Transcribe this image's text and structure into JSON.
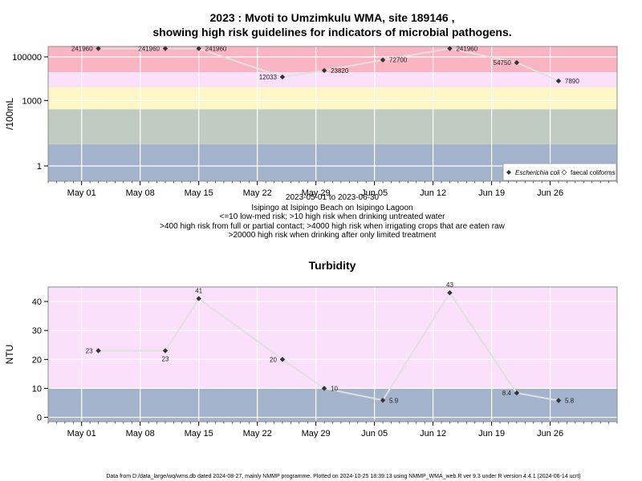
{
  "title": {
    "line1": "2023 : Mvoti to Umzimkulu WMA, site 189146 ,",
    "line2": "showing high risk guidelines for indicators of microbial pathogens."
  },
  "notes": [
    "2023-05-01 to 2023-06-30",
    "Isipingo at Isipingo Beach on Isipingo Lagoon",
    "<=10 low-med risk; >10 high risk when drinking untreated water",
    ">400 high risk from full or partial contact; >4000 high risk when irrigating crops that are eaten raw",
    ">20000 high risk when drinking after only limited treatment"
  ],
  "footer": "Data from D:/data_large/wq/wms.db dated 2024-08-27, mainly NMMP programme. Plotted on 2024-10-25 18:39:13 using NMMP_WMA_web.R ver 9.3 under R version 4.4.1 (2024-06-14 ucrt)",
  "colors": {
    "band_blue": "#a3b3cc",
    "band_grey": "#c2cbc2",
    "band_yellow": "#fdf7c6",
    "band_pink": "#fbe0fb",
    "band_red": "#fbb4c2",
    "line": "#e0e0e0",
    "point": "#333333"
  },
  "chart_data": [
    {
      "type": "line",
      "title": "",
      "ylabel": "/100mL",
      "xlabel": "",
      "y_scale": "log10",
      "ylim": [
        0.2,
        300000
      ],
      "xlim": [
        "2023-04-27",
        "2023-07-04"
      ],
      "x_ticks": [
        "May 01",
        "May 08",
        "May 15",
        "May 22",
        "May 29",
        "Jun 05",
        "Jun 12",
        "Jun 19",
        "Jun 26"
      ],
      "x_tick_dates": [
        "2023-05-01",
        "2023-05-08",
        "2023-05-15",
        "2023-05-22",
        "2023-05-29",
        "2023-06-05",
        "2023-06-12",
        "2023-06-19",
        "2023-06-26"
      ],
      "y_ticks": [
        "1",
        "1000",
        "100000"
      ],
      "y_tick_values": [
        1,
        1000,
        100000
      ],
      "risk_bands": [
        {
          "from": 0.2,
          "to": 10,
          "color": "#a3b3cc"
        },
        {
          "from": 10,
          "to": 400,
          "color": "#c2cbc2"
        },
        {
          "from": 400,
          "to": 4000,
          "color": "#fdf7c6"
        },
        {
          "from": 4000,
          "to": 20000,
          "color": "#fbe0fb"
        },
        {
          "from": 20000,
          "to": 300000,
          "color": "#fbb4c2"
        }
      ],
      "legend": {
        "placement": "bottom-right",
        "entries": [
          "Escherichia coli",
          "faecal coliforms"
        ]
      },
      "series": [
        {
          "name": "Escherichia coli",
          "x": [
            "2023-05-03",
            "2023-05-11",
            "2023-05-15",
            "2023-05-25",
            "2023-05-30",
            "2023-06-06",
            "2023-06-14",
            "2023-06-22",
            "2023-06-27"
          ],
          "values": [
            241960,
            241960,
            241960,
            12033,
            23820,
            72700,
            241960,
            54750,
            7890
          ],
          "labels": [
            "241960",
            "241960",
            "241960",
            "12033",
            "23820",
            "72700",
            "241960",
            "54750",
            "7890"
          ]
        }
      ]
    },
    {
      "type": "line",
      "title": "Turbidity",
      "ylabel": "NTU",
      "xlabel": "",
      "ylim": [
        -1.5,
        45
      ],
      "xlim": [
        "2023-04-27",
        "2023-07-04"
      ],
      "x_ticks": [
        "May 01",
        "May 08",
        "May 15",
        "May 22",
        "May 29",
        "Jun 05",
        "Jun 12",
        "Jun 19",
        "Jun 26"
      ],
      "x_tick_dates": [
        "2023-05-01",
        "2023-05-08",
        "2023-05-15",
        "2023-05-22",
        "2023-05-29",
        "2023-06-05",
        "2023-06-12",
        "2023-06-19",
        "2023-06-26"
      ],
      "y_ticks": [
        "0",
        "10",
        "20",
        "30",
        "40"
      ],
      "y_tick_values": [
        0,
        10,
        20,
        30,
        40
      ],
      "risk_bands": [
        {
          "from": -1.5,
          "to": 10,
          "color": "#a3b3cc"
        },
        {
          "from": 10,
          "to": 45,
          "color": "#fbe0fb"
        }
      ],
      "series": [
        {
          "x": [
            "2023-05-03",
            "2023-05-11",
            "2023-05-15",
            "2023-05-25",
            "2023-05-30",
            "2023-06-06",
            "2023-06-14",
            "2023-06-22",
            "2023-06-27"
          ],
          "values": [
            23,
            23,
            41,
            20,
            10,
            5.9,
            43,
            8.4,
            5.8
          ],
          "labels": [
            "23",
            "23",
            "41",
            "20",
            "10",
            "5.9",
            "43",
            "8.4",
            "5.8"
          ]
        }
      ]
    }
  ]
}
